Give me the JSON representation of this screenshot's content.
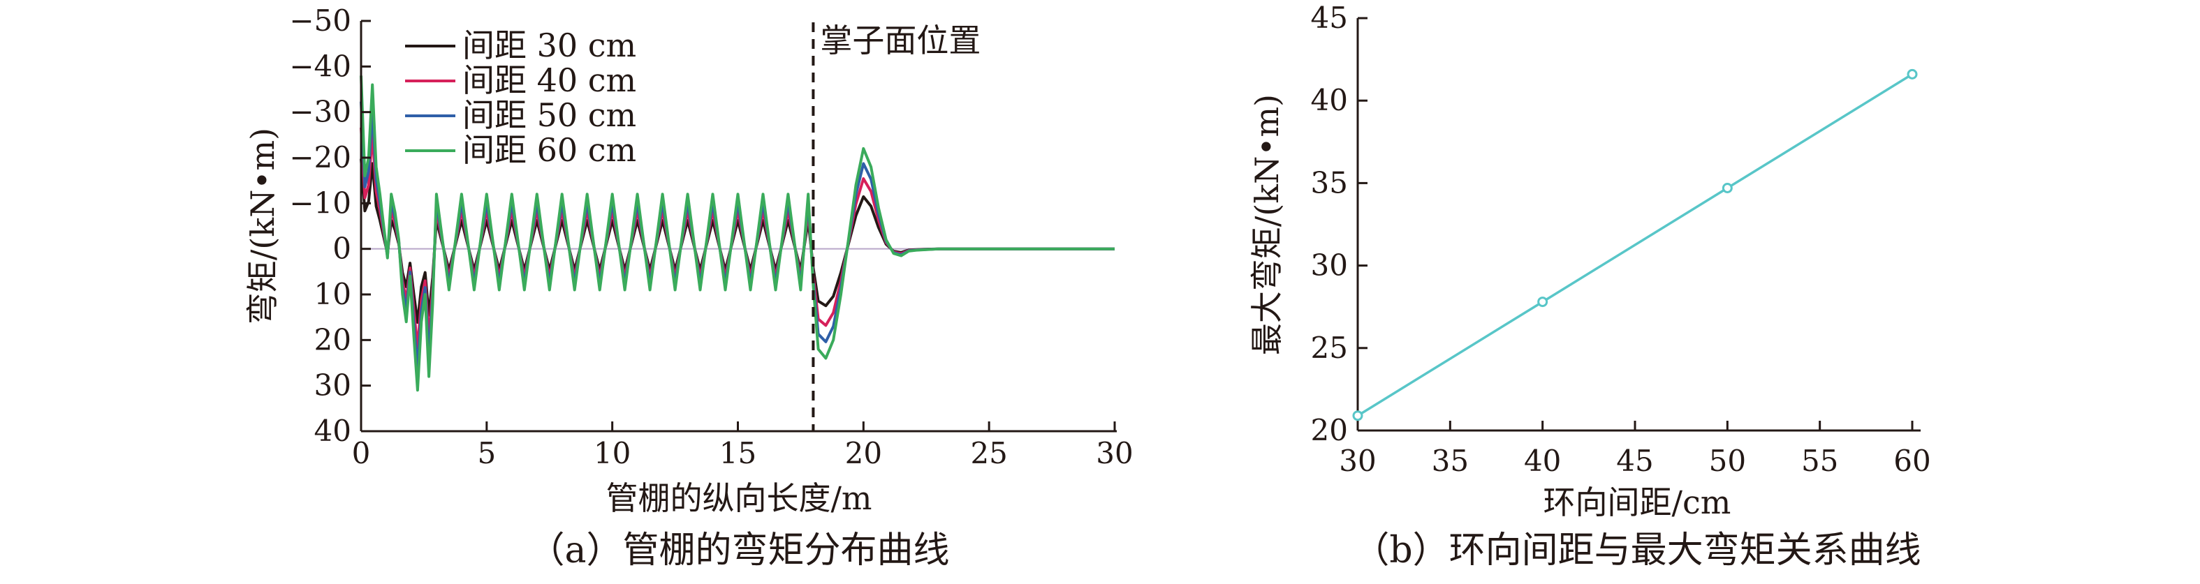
{
  "chart_data": [
    {
      "type": "line",
      "caption": "（a）管棚的弯矩分布曲线",
      "xlabel": "管棚的纵向长度/m",
      "ylabel": "弯矩/(kN•m)",
      "xlim": [
        0,
        30
      ],
      "ylim": [
        -50,
        40
      ],
      "y_inverted": true,
      "xticks": [
        "0",
        "5",
        "10",
        "15",
        "20",
        "25",
        "30"
      ],
      "yticks": [
        "−50",
        "−40",
        "−30",
        "−20",
        "−10",
        "0",
        "10",
        "20",
        "30",
        "40"
      ],
      "legend_position": "top-left",
      "annotation": {
        "text": "掌子面位置",
        "x": 18
      },
      "series": [
        {
          "name": "间距 30 cm",
          "color": "#231815",
          "scale": 0.52,
          "x": [
            0,
            0.15,
            0.3,
            0.45,
            0.6,
            0.75,
            0.9,
            1.05,
            1.2,
            1.35,
            1.5,
            1.65,
            1.8,
            1.95,
            2.1,
            2.25,
            2.4,
            2.55,
            2.7,
            2.85,
            3.0,
            3.5,
            4.0,
            4.5,
            5.0,
            5.5,
            6.0,
            6.5,
            7.0,
            7.5,
            8.0,
            8.5,
            9.0,
            9.5,
            10.0,
            10.5,
            11.0,
            11.5,
            12.0,
            12.5,
            13.0,
            13.5,
            14.0,
            14.5,
            15.0,
            15.5,
            16.0,
            16.5,
            17.0,
            17.5,
            17.8,
            18.0,
            18.2,
            18.5,
            18.8,
            19.1,
            19.4,
            19.7,
            20.0,
            20.3,
            20.6,
            20.9,
            21.2,
            21.5,
            21.8,
            22.1,
            22.4,
            23.0,
            25.0,
            28.0,
            30.0
          ],
          "y": [
            -38,
            -16,
            -20,
            -36,
            -18,
            -12,
            -5,
            2,
            -12,
            -8,
            -2,
            10,
            16,
            6,
            19,
            31,
            16,
            10,
            28,
            12,
            -12,
            9,
            -12,
            9,
            -12,
            9,
            -12,
            9,
            -12,
            9,
            -12,
            9,
            -12,
            9,
            -12,
            9,
            -12,
            9,
            -12,
            9,
            -12,
            9,
            -12,
            9,
            -12,
            9,
            -12,
            9,
            -12,
            9,
            -12,
            8,
            22,
            24,
            20,
            10,
            -2,
            -14,
            -22,
            -18,
            -9,
            -2,
            1,
            1.5,
            0.5,
            0.3,
            0.2,
            0,
            0,
            0,
            0
          ]
        },
        {
          "name": "间距 40 cm",
          "color": "#d6205a",
          "scale": 0.7,
          "x": [
            0,
            0.15,
            0.3,
            0.45,
            0.6,
            0.75,
            0.9,
            1.05,
            1.2,
            1.35,
            1.5,
            1.65,
            1.8,
            1.95,
            2.1,
            2.25,
            2.4,
            2.55,
            2.7,
            2.85,
            3.0,
            3.5,
            4.0,
            4.5,
            5.0,
            5.5,
            6.0,
            6.5,
            7.0,
            7.5,
            8.0,
            8.5,
            9.0,
            9.5,
            10.0,
            10.5,
            11.0,
            11.5,
            12.0,
            12.5,
            13.0,
            13.5,
            14.0,
            14.5,
            15.0,
            15.5,
            16.0,
            16.5,
            17.0,
            17.5,
            17.8,
            18.0,
            18.2,
            18.5,
            18.8,
            19.1,
            19.4,
            19.7,
            20.0,
            20.3,
            20.6,
            20.9,
            21.2,
            21.5,
            21.8,
            22.1,
            22.4,
            23.0,
            25.0,
            28.0,
            30.0
          ],
          "y": [
            -38,
            -16,
            -20,
            -36,
            -18,
            -12,
            -5,
            2,
            -12,
            -8,
            -2,
            10,
            16,
            6,
            19,
            31,
            16,
            10,
            28,
            12,
            -12,
            9,
            -12,
            9,
            -12,
            9,
            -12,
            9,
            -12,
            9,
            -12,
            9,
            -12,
            9,
            -12,
            9,
            -12,
            9,
            -12,
            9,
            -12,
            9,
            -12,
            9,
            -12,
            9,
            -12,
            9,
            -12,
            9,
            -12,
            8,
            22,
            24,
            20,
            10,
            -2,
            -14,
            -22,
            -18,
            -9,
            -2,
            1,
            1.5,
            0.5,
            0.3,
            0.2,
            0,
            0,
            0,
            0
          ]
        },
        {
          "name": "间距 50 cm",
          "color": "#2f5fa8",
          "scale": 0.85,
          "x": [
            0,
            0.15,
            0.3,
            0.45,
            0.6,
            0.75,
            0.9,
            1.05,
            1.2,
            1.35,
            1.5,
            1.65,
            1.8,
            1.95,
            2.1,
            2.25,
            2.4,
            2.55,
            2.7,
            2.85,
            3.0,
            3.5,
            4.0,
            4.5,
            5.0,
            5.5,
            6.0,
            6.5,
            7.0,
            7.5,
            8.0,
            8.5,
            9.0,
            9.5,
            10.0,
            10.5,
            11.0,
            11.5,
            12.0,
            12.5,
            13.0,
            13.5,
            14.0,
            14.5,
            15.0,
            15.5,
            16.0,
            16.5,
            17.0,
            17.5,
            17.8,
            18.0,
            18.2,
            18.5,
            18.8,
            19.1,
            19.4,
            19.7,
            20.0,
            20.3,
            20.6,
            20.9,
            21.2,
            21.5,
            21.8,
            22.1,
            22.4,
            23.0,
            25.0,
            28.0,
            30.0
          ],
          "y": [
            -38,
            -16,
            -20,
            -36,
            -18,
            -12,
            -5,
            2,
            -12,
            -8,
            -2,
            10,
            16,
            6,
            19,
            31,
            16,
            10,
            28,
            12,
            -12,
            9,
            -12,
            9,
            -12,
            9,
            -12,
            9,
            -12,
            9,
            -12,
            9,
            -12,
            9,
            -12,
            9,
            -12,
            9,
            -12,
            9,
            -12,
            9,
            -12,
            9,
            -12,
            9,
            -12,
            9,
            -12,
            9,
            -12,
            8,
            22,
            24,
            20,
            10,
            -2,
            -14,
            -22,
            -18,
            -9,
            -2,
            1,
            1.5,
            0.5,
            0.3,
            0.2,
            0,
            0,
            0,
            0
          ]
        },
        {
          "name": "间距 60 cm",
          "color": "#3aab5b",
          "scale": 1.0,
          "x": [
            0,
            0.15,
            0.3,
            0.45,
            0.6,
            0.75,
            0.9,
            1.05,
            1.2,
            1.35,
            1.5,
            1.65,
            1.8,
            1.95,
            2.1,
            2.25,
            2.4,
            2.55,
            2.7,
            2.85,
            3.0,
            3.5,
            4.0,
            4.5,
            5.0,
            5.5,
            6.0,
            6.5,
            7.0,
            7.5,
            8.0,
            8.5,
            9.0,
            9.5,
            10.0,
            10.5,
            11.0,
            11.5,
            12.0,
            12.5,
            13.0,
            13.5,
            14.0,
            14.5,
            15.0,
            15.5,
            16.0,
            16.5,
            17.0,
            17.5,
            17.8,
            18.0,
            18.2,
            18.5,
            18.8,
            19.1,
            19.4,
            19.7,
            20.0,
            20.3,
            20.6,
            20.9,
            21.2,
            21.5,
            21.8,
            22.1,
            22.4,
            23.0,
            25.0,
            28.0,
            30.0
          ],
          "y": [
            -38,
            -16,
            -20,
            -36,
            -18,
            -12,
            -5,
            2,
            -12,
            -8,
            -2,
            10,
            16,
            6,
            19,
            31,
            16,
            10,
            28,
            12,
            -12,
            9,
            -12,
            9,
            -12,
            9,
            -12,
            9,
            -12,
            9,
            -12,
            9,
            -12,
            9,
            -12,
            9,
            -12,
            9,
            -12,
            9,
            -12,
            9,
            -12,
            9,
            -12,
            9,
            -12,
            9,
            -12,
            9,
            -12,
            8,
            22,
            24,
            20,
            10,
            -2,
            -14,
            -22,
            -18,
            -9,
            -2,
            1,
            1.5,
            0.5,
            0.3,
            0.2,
            0,
            0,
            0,
            0
          ]
        }
      ]
    },
    {
      "type": "line",
      "caption": "（b）环向间距与最大弯矩关系曲线",
      "xlabel": "环向间距/cm",
      "ylabel": "最大弯矩/(kN•m)",
      "xlim": [
        30,
        60
      ],
      "ylim": [
        20,
        45
      ],
      "xticks": [
        "30",
        "35",
        "40",
        "45",
        "50",
        "55",
        "60"
      ],
      "yticks": [
        "20",
        "25",
        "30",
        "35",
        "40",
        "45"
      ],
      "series": [
        {
          "color": "#58c6c8",
          "x": [
            30,
            40,
            50,
            60
          ],
          "y": [
            20.9,
            27.8,
            34.7,
            41.6
          ]
        }
      ]
    }
  ]
}
